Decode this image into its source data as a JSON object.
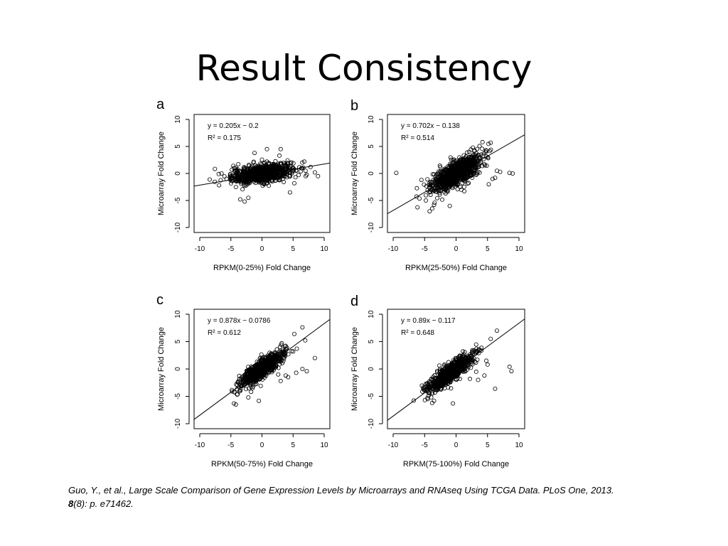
{
  "slide": {
    "title": "Result Consistency",
    "citation": {
      "text": "Guo, Y., et al., Large Scale Comparison of Gene Expression Levels by Microarrays and RNAseq Using TCGA Data. PLoS One, 2013.",
      "volume": "8",
      "issue_pages": "(8): p. e71462."
    }
  },
  "chart_data": [
    {
      "panel": "a",
      "type": "scatter",
      "xlabel": "RPKM(0-25%) Fold Change",
      "ylabel": "Microarray Fold Change",
      "xlim": [
        -10,
        10
      ],
      "ylim": [
        -10,
        10
      ],
      "xticks": [
        -10,
        -5,
        0,
        5,
        10
      ],
      "yticks": [
        -10,
        -5,
        0,
        5,
        10
      ],
      "fit": {
        "slope": 0.205,
        "intercept": -0.2,
        "equation": "y = 0.205x − 0.2",
        "r2": "R² = 0.175"
      },
      "cloud": {
        "cx": 0,
        "cy": 0,
        "sx": 2.4,
        "sy": 0.9,
        "corr": 0.45,
        "n": 900
      },
      "points": [
        [
          -3.5,
          -4.8
        ],
        [
          -4.2,
          -2.5
        ],
        [
          -2.8,
          -5.2
        ],
        [
          4.5,
          -3.5
        ],
        [
          0.8,
          4.5
        ],
        [
          -1.2,
          3.8
        ],
        [
          3.0,
          4.5
        ],
        [
          8.5,
          0.2
        ],
        [
          9.0,
          -0.5
        ],
        [
          -6.5,
          0
        ],
        [
          6.8,
          2.2
        ],
        [
          7.8,
          1.2
        ],
        [
          -5,
          -1.0
        ],
        [
          -4.5,
          1.0
        ],
        [
          5.2,
          -1.8
        ],
        [
          -2.2,
          -4.5
        ],
        [
          2.8,
          3.3
        ],
        [
          7.0,
          0.5
        ]
      ]
    },
    {
      "panel": "b",
      "type": "scatter",
      "xlabel": "RPKM(25-50%) Fold Change",
      "ylabel": "Microarray Fold Change",
      "xlim": [
        -10,
        10
      ],
      "ylim": [
        -10,
        10
      ],
      "xticks": [
        -10,
        -5,
        0,
        5,
        10
      ],
      "yticks": [
        -10,
        -5,
        0,
        5,
        10
      ],
      "fit": {
        "slope": 0.702,
        "intercept": -0.138,
        "equation": "y = 0.702x − 0.138",
        "r2": "R² = 0.514"
      },
      "cloud": {
        "cx": 0,
        "cy": 0,
        "sx": 1.9,
        "sy": 1.6,
        "corr": 0.72,
        "n": 1000
      },
      "points": [
        [
          -9.5,
          0.1
        ],
        [
          -4.2,
          -7
        ],
        [
          -3.8,
          -6.5
        ],
        [
          -4.8,
          -5
        ],
        [
          -3.5,
          -5.8
        ],
        [
          8.5,
          0.1
        ],
        [
          9.0,
          0
        ],
        [
          5.5,
          5.7
        ],
        [
          4.2,
          5.8
        ],
        [
          5.8,
          -1.0
        ],
        [
          6.5,
          0.5
        ],
        [
          5.2,
          -2.0
        ],
        [
          3.5,
          0.3
        ],
        [
          4.6,
          1.5
        ],
        [
          2.5,
          0.2
        ],
        [
          -1.0,
          -6.0
        ],
        [
          4.0,
          3.5
        ],
        [
          7.0,
          0.3
        ],
        [
          6.2,
          -0.8
        ],
        [
          -5.5,
          -1.2
        ]
      ]
    },
    {
      "panel": "c",
      "type": "scatter",
      "xlabel": "RPKM(50-75%) Fold Change",
      "ylabel": "Microarray Fold Change",
      "xlim": [
        -10,
        10
      ],
      "ylim": [
        -10,
        10
      ],
      "xticks": [
        -10,
        -5,
        0,
        5,
        10
      ],
      "yticks": [
        -10,
        -5,
        0,
        5,
        10
      ],
      "fit": {
        "slope": 0.878,
        "intercept": -0.0786,
        "equation": "y = 0.878x − 0.0786",
        "r2": "R² = 0.612"
      },
      "cloud": {
        "cx": 0,
        "cy": 0,
        "sx": 1.7,
        "sy": 1.6,
        "corr": 0.85,
        "n": 800
      },
      "points": [
        [
          -4.5,
          -6.3
        ],
        [
          -4.2,
          -6.5
        ],
        [
          6.5,
          7.6
        ],
        [
          5.2,
          6.4
        ],
        [
          8.5,
          2.0
        ],
        [
          7.2,
          -0.4
        ],
        [
          6.5,
          0
        ],
        [
          5.5,
          -0.7
        ],
        [
          4.2,
          -1.5
        ],
        [
          3.0,
          -2.2
        ],
        [
          2.6,
          -1.0
        ],
        [
          -3.5,
          -4.0
        ],
        [
          -2.2,
          -5.2
        ],
        [
          4.0,
          3.9
        ],
        [
          5.0,
          3.2
        ],
        [
          5.6,
          3.7
        ],
        [
          -4.8,
          -4.1
        ],
        [
          -0.5,
          -5.8
        ],
        [
          3.8,
          -1.2
        ]
      ]
    },
    {
      "panel": "d",
      "type": "scatter",
      "xlabel": "RPKM(75-100%) Fold Change",
      "ylabel": "Microarray Fold Change",
      "xlim": [
        -10,
        10
      ],
      "ylim": [
        -10,
        10
      ],
      "xticks": [
        -10,
        -5,
        0,
        5,
        10
      ],
      "yticks": [
        -10,
        -5,
        0,
        5,
        10
      ],
      "fit": {
        "slope": 0.89,
        "intercept": -0.117,
        "equation": "y = 0.89x − 0.117",
        "r2": "R² = 0.648"
      },
      "cloud": {
        "cx": -1.0,
        "cy": -0.8,
        "sx": 1.8,
        "sy": 1.7,
        "corr": 0.86,
        "n": 800
      },
      "points": [
        [
          6.5,
          7.0
        ],
        [
          5.5,
          5.5
        ],
        [
          8.5,
          0.4
        ],
        [
          8.8,
          -0.4
        ],
        [
          6.2,
          -3.6
        ],
        [
          4.5,
          -1.2
        ],
        [
          3.5,
          -2.0
        ],
        [
          -4.5,
          -5.5
        ],
        [
          -3.8,
          -6.2
        ],
        [
          -0.5,
          -6.3
        ],
        [
          4.8,
          1.5
        ],
        [
          3.2,
          -0.5
        ],
        [
          -5,
          -3.5
        ],
        [
          5.0,
          0.8
        ],
        [
          2.2,
          -1.8
        ],
        [
          -3.5,
          -5.8
        ]
      ]
    }
  ]
}
